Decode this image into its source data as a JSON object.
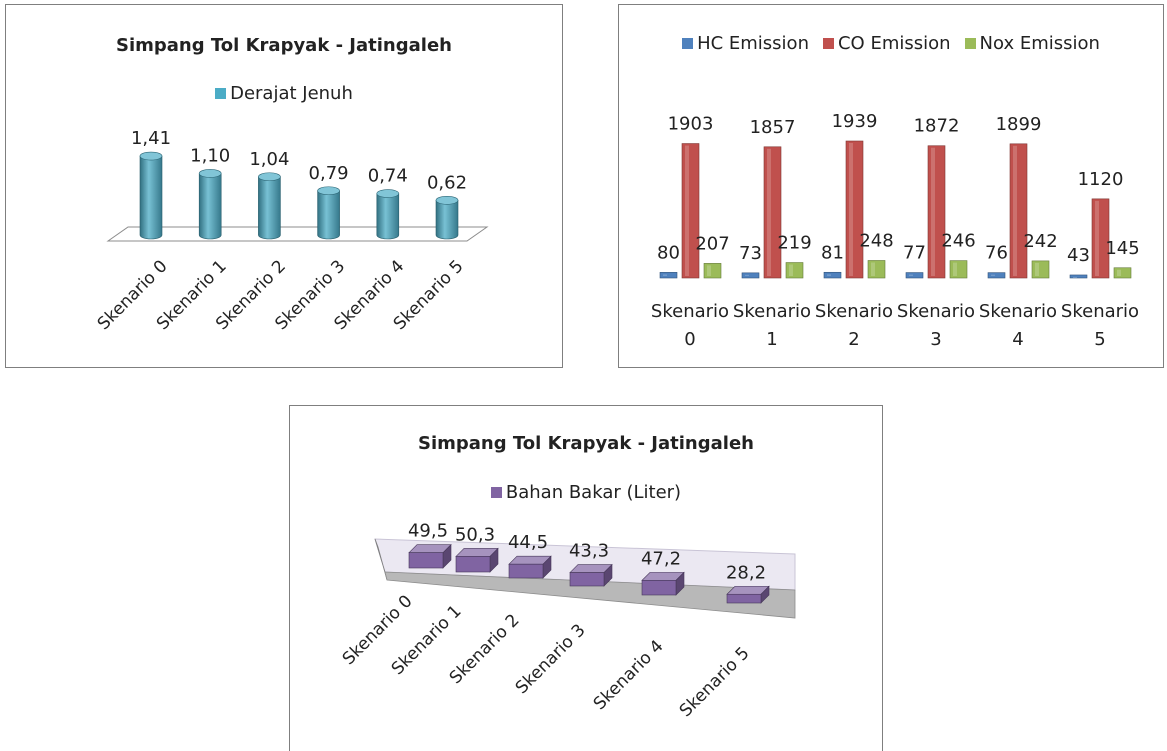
{
  "chart_data": [
    {
      "type": "bar",
      "title": "Simpang Tol Krapyak - Jatingaleh",
      "categories": [
        "Skenario 0",
        "Skenario 1",
        "Skenario 2",
        "Skenario 3",
        "Skenario 4",
        "Skenario 5"
      ],
      "series": [
        {
          "name": "Derajat Jenuh",
          "values": [
            1.41,
            1.1,
            1.04,
            0.79,
            0.74,
            0.62
          ],
          "labels": [
            "1,41",
            "1,10",
            "1,04",
            "0,79",
            "0,74",
            "0,62"
          ],
          "color": "#4bacc6"
        }
      ],
      "legend": "top",
      "grid": false,
      "style": "3d-cylinder"
    },
    {
      "type": "bar",
      "title": "",
      "categories": [
        "Skenario 0",
        "Skenario 1",
        "Skenario 2",
        "Skenario 3",
        "Skenario 4",
        "Skenario 5"
      ],
      "category_lines": [
        [
          "Skenario",
          "0"
        ],
        [
          "Skenario",
          "1"
        ],
        [
          "Skenario",
          "2"
        ],
        [
          "Skenario",
          "3"
        ],
        [
          "Skenario",
          "4"
        ],
        [
          "Skenario",
          "5"
        ]
      ],
      "series": [
        {
          "name": "HC Emission",
          "values": [
            80,
            73,
            81,
            77,
            76,
            43
          ],
          "color": "#4f81bd"
        },
        {
          "name": "CO Emission",
          "values": [
            1903,
            1857,
            1939,
            1872,
            1899,
            1120
          ],
          "color": "#c0504d"
        },
        {
          "name": "Nox Emission",
          "values": [
            207,
            219,
            248,
            246,
            242,
            145
          ],
          "color": "#9bbb59"
        }
      ],
      "legend": "top",
      "grid": false
    },
    {
      "type": "bar",
      "title": "Simpang Tol Krapyak - Jatingaleh",
      "categories": [
        "Skenario 0",
        "Skenario 1",
        "Skenario 2",
        "Skenario 3",
        "Skenario 4",
        "Skenario 5"
      ],
      "series": [
        {
          "name": "Bahan Bakar (Liter)",
          "values": [
            49.5,
            50.3,
            44.5,
            43.3,
            47.2,
            28.2
          ],
          "labels": [
            "49,5",
            "50,3",
            "44,5",
            "43,3",
            "47,2",
            "28,2"
          ],
          "color": "#8064a2"
        }
      ],
      "legend": "top",
      "grid": false,
      "style": "3d-block"
    }
  ]
}
